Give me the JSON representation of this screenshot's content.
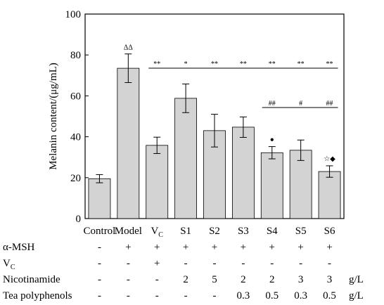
{
  "chart_data": {
    "type": "bar",
    "ylabel": "Melanin content/(μg/mL)",
    "ylim": [
      0,
      100
    ],
    "yticks": [
      "0",
      "20",
      "40",
      "60",
      "80",
      "100"
    ],
    "categories": [
      "Control",
      "Model",
      "V",
      "S1",
      "S2",
      "S3",
      "S4",
      "S5",
      "S6"
    ],
    "category_subscripts": [
      "",
      "",
      "C",
      "",
      "",
      "",
      "",
      "",
      ""
    ],
    "values": [
      19.5,
      73.5,
      35.8,
      58.8,
      43.0,
      44.7,
      32.2,
      33.4,
      23.0
    ],
    "errors": [
      2.0,
      7.0,
      4.0,
      7.0,
      8.0,
      5.0,
      3.0,
      5.0,
      2.8
    ],
    "bar_color": "#d3d3d3",
    "annotations": {
      "model_mark": "ΔΔ",
      "sig_vs_model": [
        "",
        "",
        "**",
        "*",
        "**",
        "**",
        "**",
        "**",
        "**"
      ],
      "sig_hash": [
        "",
        "",
        "",
        "",
        "",
        "",
        "##",
        "#",
        "##"
      ],
      "above_bar": [
        "",
        "",
        "",
        "",
        "",
        "",
        "●",
        "",
        "☆◆"
      ]
    }
  },
  "table": {
    "rows": [
      {
        "label": "α-MSH",
        "label_sub": "",
        "cells": [
          "-",
          "+",
          "+",
          "+",
          "+",
          "+",
          "+",
          "+",
          "+"
        ],
        "unit": ""
      },
      {
        "label": "V",
        "label_sub": "C",
        "cells": [
          "-",
          "-",
          "+",
          "-",
          "-",
          "-",
          "-",
          "-",
          "-"
        ],
        "unit": ""
      },
      {
        "label": "Nicotinamide",
        "label_sub": "",
        "cells": [
          "-",
          "-",
          "-",
          "2",
          "5",
          "2",
          "2",
          "3",
          "3"
        ],
        "unit": "g/L"
      },
      {
        "label": "Tea polyphenols",
        "label_sub": "",
        "cells": [
          "-",
          "-",
          "-",
          "-",
          "-",
          "0.3",
          "0.5",
          "0.3",
          "0.5"
        ],
        "unit": "g/L"
      }
    ]
  }
}
